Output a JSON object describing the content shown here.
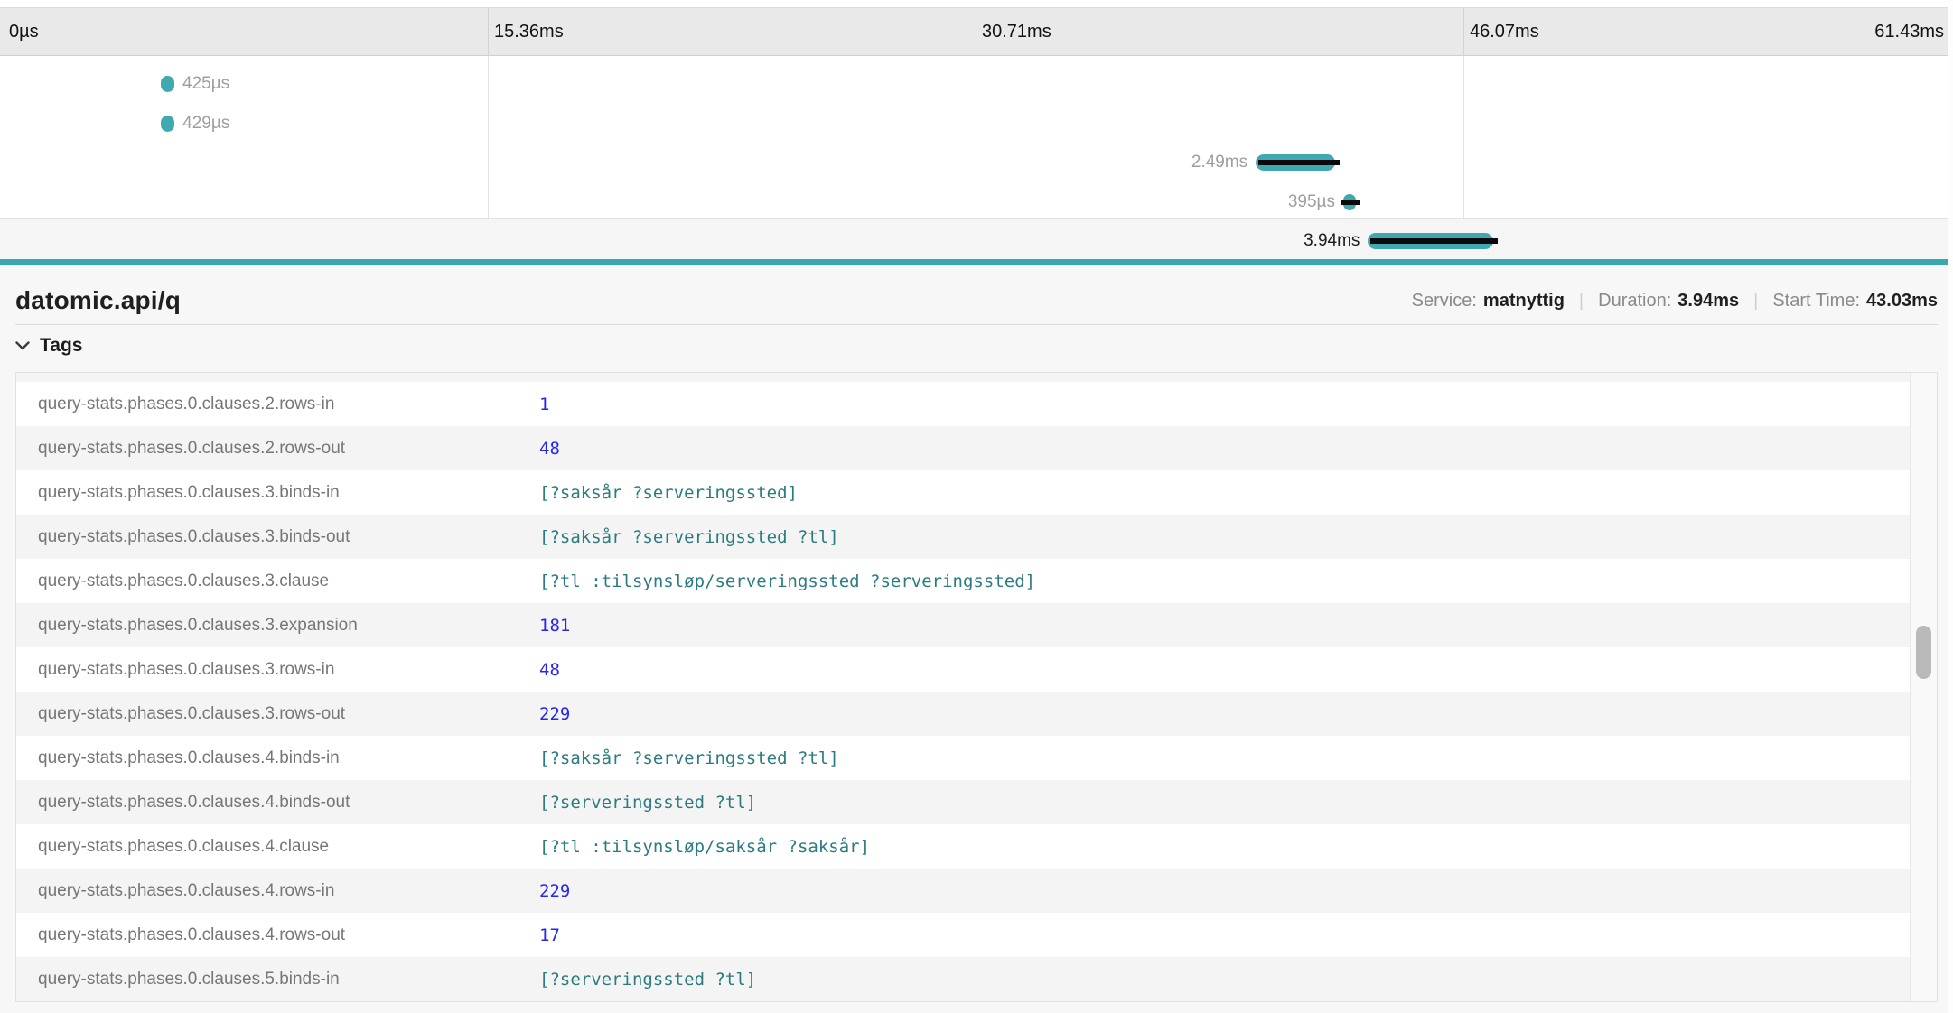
{
  "timeline": {
    "total_ms": 61.43,
    "ticks": [
      "0µs",
      "15.36ms",
      "30.71ms",
      "46.07ms",
      "61.43ms"
    ],
    "spans": [
      {
        "label": "425µs",
        "start_ms": 5.06,
        "duration_ms": 0.425,
        "critical": false,
        "selected": false
      },
      {
        "label": "429µs",
        "start_ms": 5.06,
        "duration_ms": 0.429,
        "critical": false,
        "selected": false
      },
      {
        "label": "2.49ms",
        "start_ms": 39.5,
        "duration_ms": 2.49,
        "critical": true,
        "selected": false
      },
      {
        "label": "395µs",
        "start_ms": 42.25,
        "duration_ms": 0.395,
        "critical": true,
        "selected": false
      },
      {
        "label": "3.94ms",
        "start_ms": 43.03,
        "duration_ms": 3.94,
        "critical": true,
        "selected": true
      }
    ]
  },
  "detail": {
    "title": "datomic.api/q",
    "meta": [
      {
        "label": "Service:",
        "value": "matnyttig"
      },
      {
        "label": "Duration:",
        "value": "3.94ms"
      },
      {
        "label": "Start Time:",
        "value": "43.03ms"
      }
    ],
    "meta_separator": "|",
    "tags_section_label": "Tags",
    "tags": [
      {
        "key": "query-stats.phases.0.clauses.2.rows-in",
        "value": "1",
        "type": "number"
      },
      {
        "key": "query-stats.phases.0.clauses.2.rows-out",
        "value": "48",
        "type": "number"
      },
      {
        "key": "query-stats.phases.0.clauses.3.binds-in",
        "value": "[?saksår ?serveringssted]",
        "type": "string"
      },
      {
        "key": "query-stats.phases.0.clauses.3.binds-out",
        "value": "[?saksår ?serveringssted ?tl]",
        "type": "string"
      },
      {
        "key": "query-stats.phases.0.clauses.3.clause",
        "value": "[?tl :tilsynsløp/serveringssted ?serveringssted]",
        "type": "string"
      },
      {
        "key": "query-stats.phases.0.clauses.3.expansion",
        "value": "181",
        "type": "number"
      },
      {
        "key": "query-stats.phases.0.clauses.3.rows-in",
        "value": "48",
        "type": "number"
      },
      {
        "key": "query-stats.phases.0.clauses.3.rows-out",
        "value": "229",
        "type": "number"
      },
      {
        "key": "query-stats.phases.0.clauses.4.binds-in",
        "value": "[?saksår ?serveringssted ?tl]",
        "type": "string"
      },
      {
        "key": "query-stats.phases.0.clauses.4.binds-out",
        "value": "[?serveringssted ?tl]",
        "type": "string"
      },
      {
        "key": "query-stats.phases.0.clauses.4.clause",
        "value": "[?tl :tilsynsløp/saksår ?saksår]",
        "type": "string"
      },
      {
        "key": "query-stats.phases.0.clauses.4.rows-in",
        "value": "229",
        "type": "number"
      },
      {
        "key": "query-stats.phases.0.clauses.4.rows-out",
        "value": "17",
        "type": "number"
      },
      {
        "key": "query-stats.phases.0.clauses.5.binds-in",
        "value": "[?serveringssted ?tl]",
        "type": "string"
      }
    ]
  },
  "colors": {
    "accent_teal": "#3aa7b0",
    "span_bar": "#3fa9b2",
    "critical_path": "#0a0a0a",
    "value_number": "#2727e8",
    "value_string": "#2b7c80"
  }
}
